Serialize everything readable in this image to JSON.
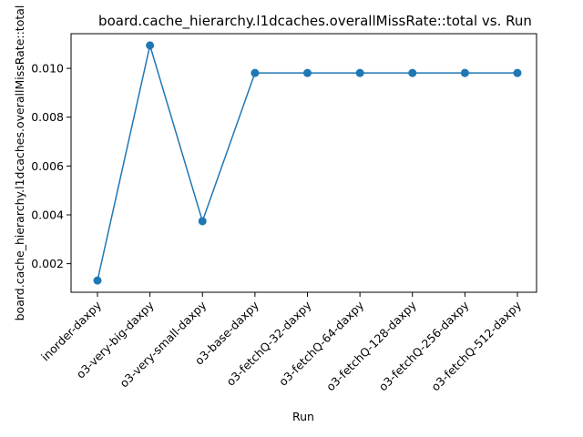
{
  "chart_data": {
    "type": "line",
    "title": "board.cache_hierarchy.l1dcaches.overallMissRate::total vs. Run",
    "xlabel": "Run",
    "ylabel": "board.cache_hierarchy.l1dcaches.overallMissRate::total",
    "categories": [
      "inorder-daxpy",
      "o3-very-big-daxpy",
      "o3-very-small-daxpy",
      "o3-base-daxpy",
      "o3-fetchQ-32-daxpy",
      "o3-fetchQ-64-daxpy",
      "o3-fetchQ-128-daxpy",
      "o3-fetchQ-256-daxpy",
      "o3-fetchQ-512-daxpy"
    ],
    "series": [
      {
        "values": [
          0.00131,
          0.01094,
          0.00374,
          0.00981,
          0.00981,
          0.00981,
          0.00981,
          0.00981,
          0.00981
        ]
      }
    ],
    "yticks": [
      "0.002",
      "0.004",
      "0.006",
      "0.008",
      "0.010"
    ],
    "ylim": [
      0.00083,
      0.01142
    ],
    "grid": false,
    "legend": "none",
    "colors": {
      "series": "#1f77b4",
      "axis": "#000000"
    }
  }
}
